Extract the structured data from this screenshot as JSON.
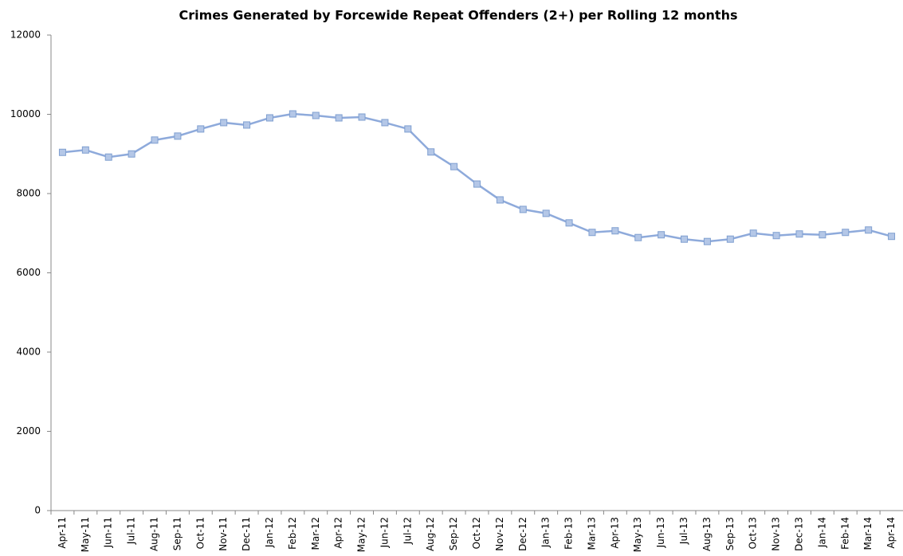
{
  "chart_data": {
    "type": "line",
    "title": "Crimes Generated by Forcewide Repeat Offenders (2+) per Rolling 12 months",
    "categories": [
      "Apr-11",
      "May-11",
      "Jun-11",
      "Jul-11",
      "Aug-11",
      "Sep-11",
      "Oct-11",
      "Nov-11",
      "Dec-11",
      "Jan-12",
      "Feb-12",
      "Mar-12",
      "Apr-12",
      "May-12",
      "Jun-12",
      "Jul-12",
      "Aug-12",
      "Sep-12",
      "Oct-12",
      "Nov-12",
      "Dec-12",
      "Jan-13",
      "Feb-13",
      "Mar-13",
      "Apr-13",
      "May-13",
      "Jun-13",
      "Jul-13",
      "Aug-13",
      "Sep-13",
      "Oct-13",
      "Nov-13",
      "Dec-13",
      "Jan-14",
      "Feb-14",
      "Mar-14",
      "Apr-14"
    ],
    "series": [
      {
        "name": "Crimes",
        "color": "#8eaadb",
        "marker_color": "#b4c7e7",
        "values": [
          9040,
          9100,
          8920,
          9000,
          9350,
          9450,
          9630,
          9790,
          9730,
          9910,
          10010,
          9970,
          9910,
          9930,
          9790,
          9630,
          9050,
          8680,
          8240,
          7840,
          7600,
          7500,
          7260,
          7020,
          7060,
          6890,
          6960,
          6850,
          6790,
          6850,
          7000,
          6940,
          6980,
          6960,
          7020,
          7080,
          6920
        ]
      }
    ],
    "ylim": [
      0,
      12000
    ],
    "yticks": [
      0,
      2000,
      4000,
      6000,
      8000,
      10000,
      12000
    ],
    "grid": false
  }
}
